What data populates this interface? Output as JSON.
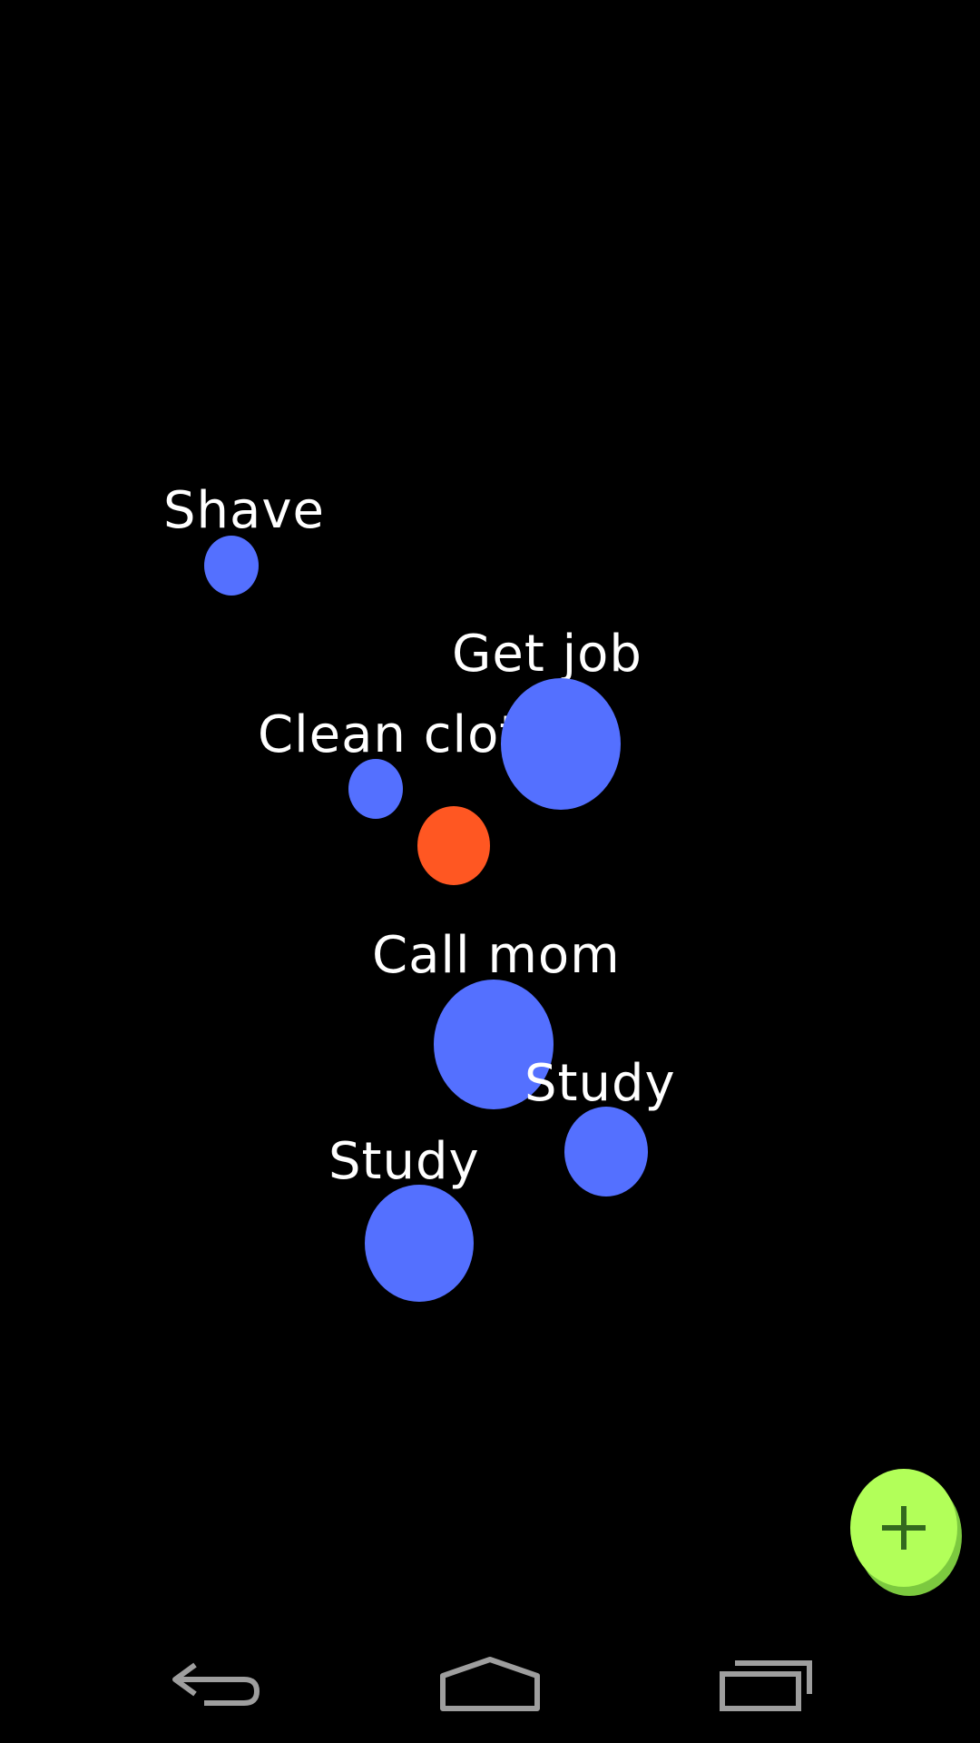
{
  "nodes": [
    {
      "label": "Shave",
      "color": "#5470ff"
    },
    {
      "label": "Get job",
      "color": "#5470ff"
    },
    {
      "label": "Clean clot",
      "color": "#5470ff"
    },
    {
      "label": "",
      "color": "#ff5722"
    },
    {
      "label": "Call mom",
      "color": "#5470ff"
    },
    {
      "label": "Study",
      "color": "#5470ff"
    },
    {
      "label": "Study",
      "color": "#5470ff"
    }
  ],
  "fab": {
    "icon": "plus-icon",
    "color": "#b2ff59"
  },
  "navbar": {
    "back": {
      "icon": "back-icon"
    },
    "home": {
      "icon": "home-icon"
    },
    "recents": {
      "icon": "recents-icon"
    }
  }
}
